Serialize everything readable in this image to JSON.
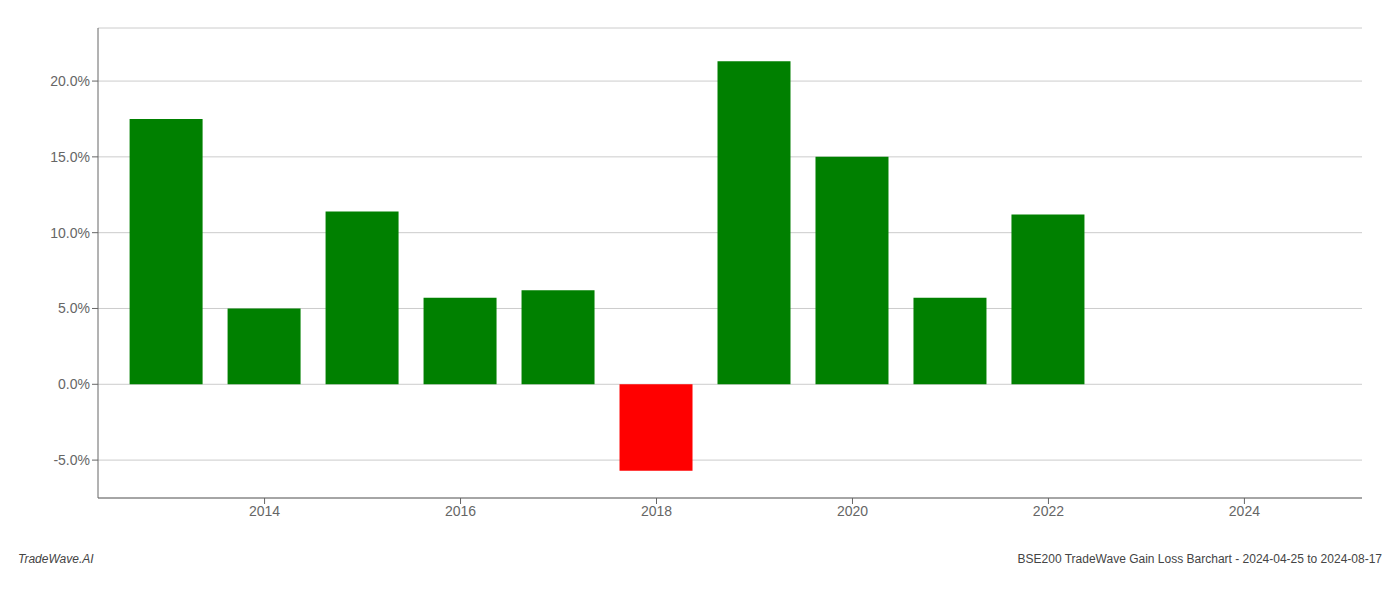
{
  "chart_data": {
    "type": "bar",
    "x": [
      2013,
      2014,
      2015,
      2016,
      2017,
      2018,
      2019,
      2020,
      2021,
      2022
    ],
    "values": [
      17.5,
      5.0,
      11.4,
      5.7,
      6.2,
      -5.7,
      21.3,
      15.0,
      5.7,
      11.2
    ],
    "colors": [
      "#008000",
      "#008000",
      "#008000",
      "#008000",
      "#008000",
      "#ff0000",
      "#008000",
      "#008000",
      "#008000",
      "#008000"
    ],
    "xlim": [
      2012.3,
      2025.2
    ],
    "xticks": [
      2014,
      2016,
      2018,
      2020,
      2022,
      2024
    ],
    "ylim": [
      -7.5,
      23.5
    ],
    "yticks": [
      {
        "value": -5.0,
        "label": "-5.0%"
      },
      {
        "value": 0.0,
        "label": "0.0%"
      },
      {
        "value": 5.0,
        "label": "5.0%"
      },
      {
        "value": 10.0,
        "label": "10.0%"
      },
      {
        "value": 15.0,
        "label": "15.0%"
      },
      {
        "value": 20.0,
        "label": "20.0%"
      }
    ],
    "grid": true,
    "annotations": [
      "TradeWave.AI",
      "BSE200 TradeWave Gain Loss Barchart - 2024-04-25 to 2024-08-17"
    ]
  }
}
